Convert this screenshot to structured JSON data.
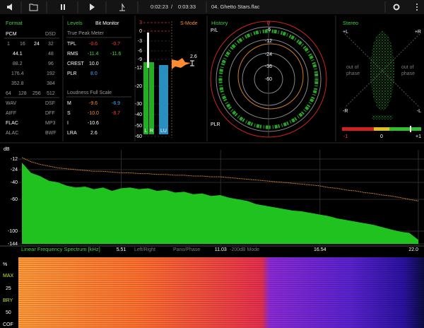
{
  "toolbar": {
    "time": "0:02:23",
    "separator": "/",
    "duration": "0:03:33",
    "track": "04. Ghetto Stars.flac"
  },
  "format": {
    "title": "Format",
    "pcm": "PCM",
    "dsd": "DSD",
    "bits": [
      "1",
      "16",
      "24",
      "32"
    ],
    "rates": [
      [
        "44.1",
        "48"
      ],
      [
        "88.2",
        "96"
      ],
      [
        "176.4",
        "192"
      ],
      [
        "352.8",
        "384"
      ]
    ],
    "dsd_rates": [
      "64",
      "128",
      "256",
      "512"
    ],
    "files": [
      [
        "WAV",
        "DSF"
      ],
      [
        "AIFF",
        "DFF"
      ],
      [
        "FLAC",
        "MP3"
      ],
      [
        "ALAC",
        "BWF"
      ]
    ]
  },
  "levels": {
    "title": "Levels",
    "bit_monitor": "Bit Monitor",
    "true_peak": "True Peak Meter",
    "rows": [
      [
        "TPL",
        "-0.6",
        "-0.7"
      ],
      [
        "RMS",
        "-11.4",
        "-11.6"
      ],
      [
        "CREST",
        "10.0"
      ],
      [
        "PLR",
        "8.0"
      ]
    ],
    "loudness": "Loudness Full Scale",
    "lrows": [
      [
        "M",
        "-9.6",
        "-6.9"
      ],
      [
        "S",
        "-10.0",
        "-8.7"
      ],
      [
        "I",
        "-10.6"
      ],
      [
        "LRA",
        "2.6"
      ]
    ]
  },
  "meter": {
    "ticks": [
      3,
      0,
      -3,
      -6,
      -9,
      -12,
      -20,
      -30,
      -40,
      -50,
      -60
    ],
    "channels": [
      {
        "name": "L",
        "value": -10
      },
      {
        "name": "R",
        "value": -10
      },
      {
        "name": "LU",
        "value": -11
      }
    ],
    "mode": "S-Mode",
    "lra": "2.6"
  },
  "history": {
    "title": "History",
    "pl": "P/L",
    "plr": "PLR",
    "rings": [
      "0",
      "-6",
      "-12",
      "-24",
      "-36",
      "-60"
    ]
  },
  "stereo": {
    "title": "Stereo",
    "corners": [
      "+L",
      "+R",
      "-R",
      "-L"
    ],
    "phase_left": [
      "out of",
      "phase"
    ],
    "phase_right": [
      "out of",
      "phase"
    ],
    "scale": [
      "-1",
      "0",
      "+1"
    ]
  },
  "chart_data": {
    "type": "area",
    "y_label": "dB",
    "x_label": "Linear Frequency Spectrum [kHz]",
    "x": [
      0,
      0.5,
      1,
      1.5,
      2,
      2.5,
      3,
      3.5,
      4,
      4.5,
      5,
      5.5,
      6,
      6.5,
      7,
      7.5,
      8,
      8.5,
      9,
      9.5,
      10,
      10.5,
      11,
      11.5,
      12,
      12.5,
      13,
      13.5,
      14,
      14.5,
      15,
      15.5,
      16,
      16.5,
      17,
      17.5,
      18,
      18.5,
      19,
      19.5,
      20,
      20.5,
      21,
      21.5,
      22
    ],
    "series": [
      {
        "color": "#1fc21f",
        "values": [
          -16,
          -28,
          -32,
          -38,
          -40,
          -44,
          -46,
          -45,
          -48,
          -46,
          -50,
          -47,
          -46,
          -48,
          -47,
          -50,
          -49,
          -52,
          -51,
          -54,
          -53,
          -56,
          -55,
          -58,
          -60,
          -62,
          -66,
          -68,
          -70,
          -72,
          -74,
          -75,
          -77,
          -79,
          -81,
          -84,
          -86,
          -88,
          -90,
          -92,
          -95,
          -98,
          -102,
          -106,
          -130
        ]
      },
      {
        "color": "#e8903a",
        "values": [
          -10,
          -15,
          -18,
          -20,
          -22,
          -23,
          -24,
          -25,
          -26,
          -26,
          -27,
          -28,
          -28,
          -29,
          -29,
          -30,
          -30,
          -31,
          -31,
          -32,
          -32,
          -33,
          -33,
          -34,
          -35,
          -36,
          -37,
          -38,
          -39,
          -40,
          -41,
          -42,
          -43,
          -44,
          -46,
          -47,
          -49,
          -50,
          -52,
          -53,
          -55,
          -56,
          -58,
          -60,
          -62
        ]
      }
    ],
    "xlim": [
      0,
      22
    ],
    "xticks": [
      5.51,
      11.03,
      16.54,
      {
        "value": 22,
        "label": "22.0"
      }
    ],
    "ylim": [
      0,
      -144
    ],
    "yticks": [
      -12,
      -24,
      -40,
      -60,
      -100,
      -144
    ],
    "grid": true
  },
  "spectrum_buttons": [
    "Left/Right",
    "Pano/Phase",
    "-200dB Mode"
  ],
  "spectrogram": {
    "labels": [
      "%",
      "MAX",
      "25",
      "BRY",
      "50",
      "COF"
    ]
  }
}
